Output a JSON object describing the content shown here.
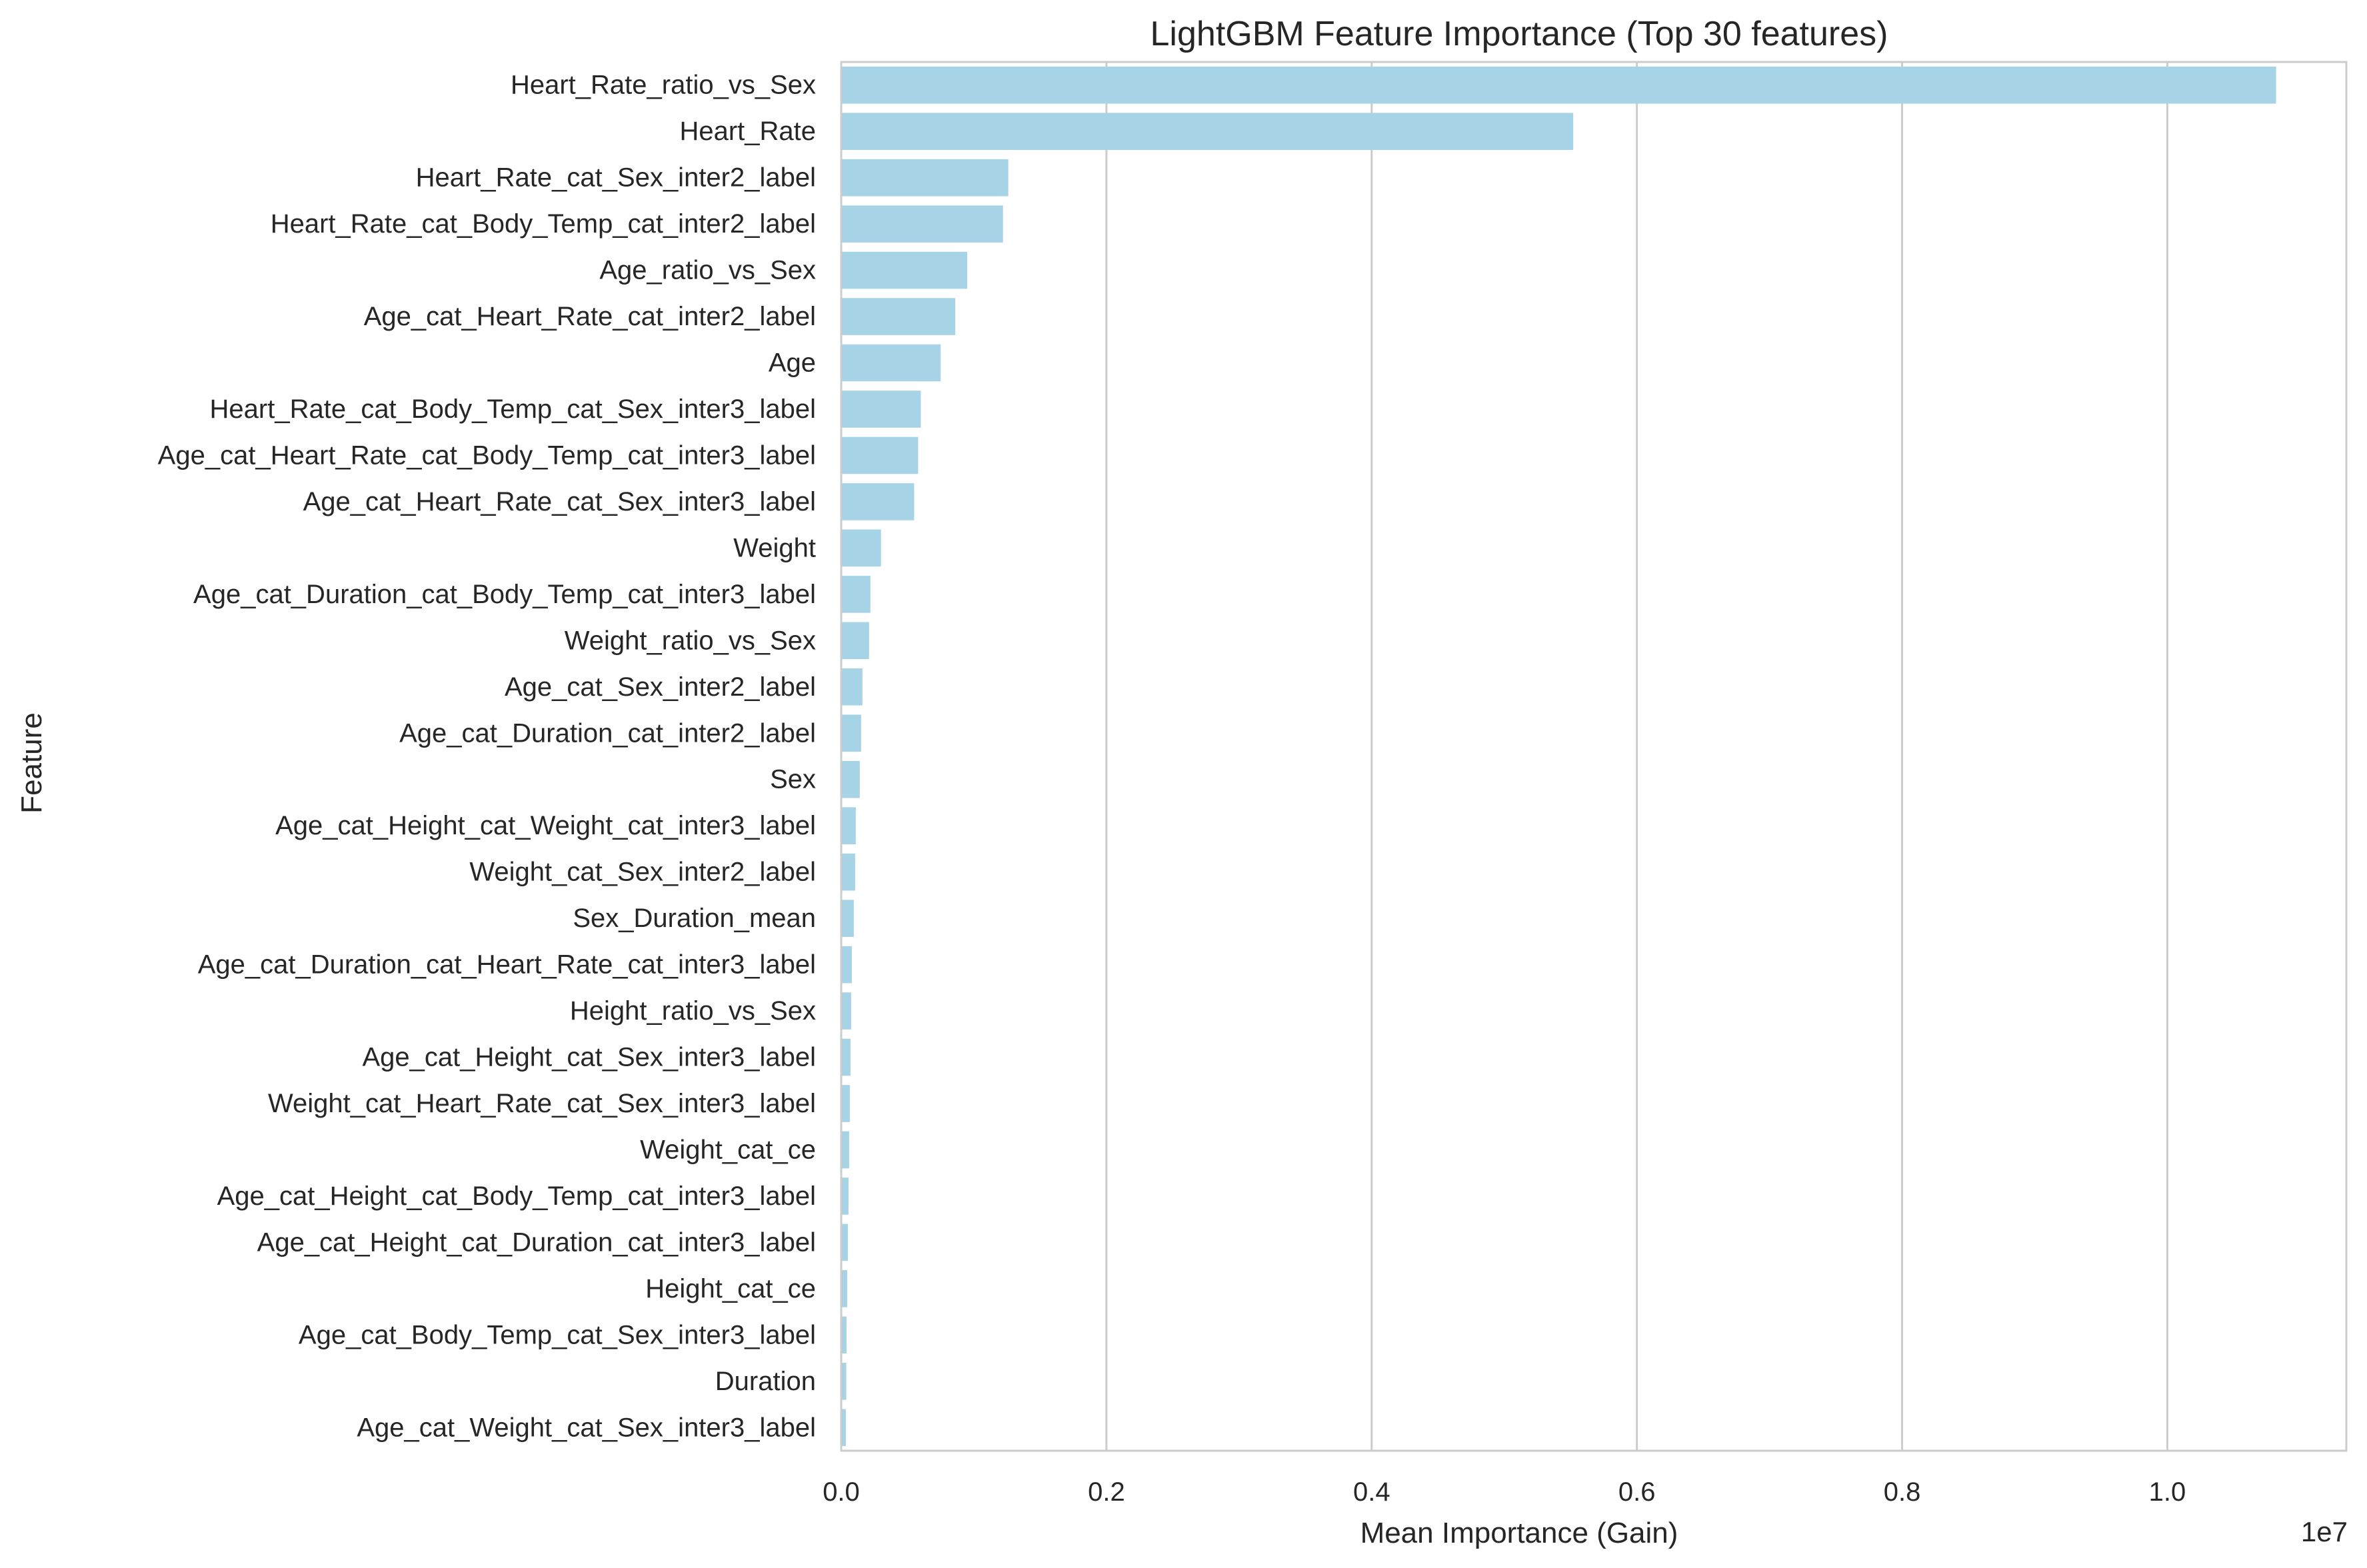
{
  "chart_data": {
    "type": "bar",
    "orientation": "horizontal",
    "title": "LightGBM Feature Importance (Top 30 features)",
    "xlabel": "Mean Importance (Gain)",
    "ylabel": "Feature",
    "x_offset_label": "1e7",
    "x_scale_factor": 10000000,
    "xlim": [
      0,
      11350000
    ],
    "x_ticks": [
      0,
      2000000,
      4000000,
      6000000,
      8000000,
      10000000
    ],
    "x_tick_labels": [
      "0.0",
      "0.2",
      "0.4",
      "0.6",
      "0.8",
      "1.0"
    ],
    "grid": "vertical",
    "bar_color": "#a6d3e6",
    "categories": [
      "Heart_Rate_ratio_vs_Sex",
      "Heart_Rate",
      "Heart_Rate_cat_Sex_inter2_label",
      "Heart_Rate_cat_Body_Temp_cat_inter2_label",
      "Age_ratio_vs_Sex",
      "Age_cat_Heart_Rate_cat_inter2_label",
      "Age",
      "Heart_Rate_cat_Body_Temp_cat_Sex_inter3_label",
      "Age_cat_Heart_Rate_cat_Body_Temp_cat_inter3_label",
      "Age_cat_Heart_Rate_cat_Sex_inter3_label",
      "Weight",
      "Age_cat_Duration_cat_Body_Temp_cat_inter3_label",
      "Weight_ratio_vs_Sex",
      "Age_cat_Sex_inter2_label",
      "Age_cat_Duration_cat_inter2_label",
      "Sex",
      "Age_cat_Height_cat_Weight_cat_inter3_label",
      "Weight_cat_Sex_inter2_label",
      "Sex_Duration_mean",
      "Age_cat_Duration_cat_Heart_Rate_cat_inter3_label",
      "Height_ratio_vs_Sex",
      "Age_cat_Height_cat_Sex_inter3_label",
      "Weight_cat_Heart_Rate_cat_Sex_inter3_label",
      "Weight_cat_ce",
      "Age_cat_Height_cat_Body_Temp_cat_inter3_label",
      "Age_cat_Height_cat_Duration_cat_inter3_label",
      "Height_cat_ce",
      "Age_cat_Body_Temp_cat_Sex_inter3_label",
      "Duration",
      "Age_cat_Weight_cat_Sex_inter3_label"
    ],
    "values": [
      10820000,
      5520000,
      1260000,
      1220000,
      950000,
      860000,
      750000,
      600000,
      580000,
      550000,
      300000,
      220000,
      210000,
      160000,
      150000,
      140000,
      110000,
      105000,
      95000,
      80000,
      75000,
      70000,
      65000,
      60000,
      55000,
      50000,
      45000,
      40000,
      38000,
      35000
    ]
  }
}
